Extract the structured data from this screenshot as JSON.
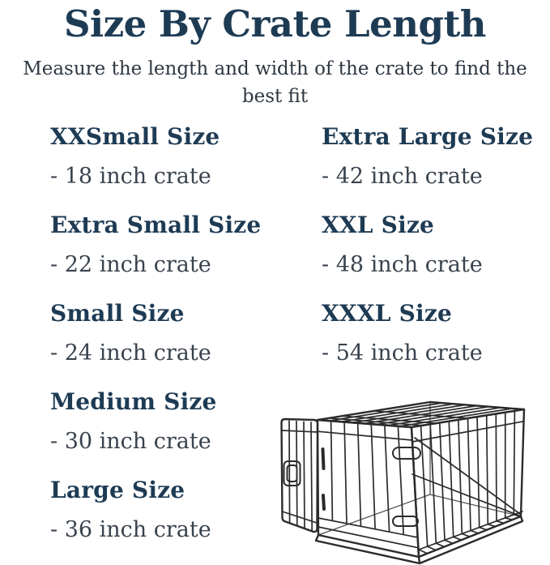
{
  "title": "Size By Crate Length",
  "subtitle": "Measure the length and width of the crate to find the best fit",
  "columns": {
    "left": [
      {
        "name": "XXSmall Size",
        "detail": "- 18 inch crate"
      },
      {
        "name": "Extra Small Size",
        "detail": "- 22 inch crate"
      },
      {
        "name": "Small Size",
        "detail": "- 24 inch crate"
      },
      {
        "name": "Medium Size",
        "detail": "- 30 inch crate"
      },
      {
        "name": "Large Size",
        "detail": "- 36 inch crate"
      }
    ],
    "right": [
      {
        "name": "Extra Large Size",
        "detail": "- 42 inch crate"
      },
      {
        "name": "XXL Size",
        "detail": "- 48 inch crate"
      },
      {
        "name": "XXXL Size",
        "detail": "- 54 inch crate"
      }
    ]
  },
  "illustration": "wire-dog-crate",
  "colors": {
    "background": "#ffffff",
    "title_navy": "#1e3b54",
    "body_slate": "#39434e",
    "line_art": "#2b2b2b"
  }
}
